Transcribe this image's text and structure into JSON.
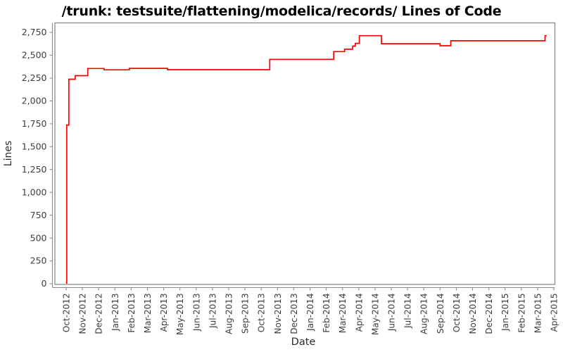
{
  "chart_data": {
    "type": "line",
    "style": "step",
    "title": "/trunk: testsuite/flattening/modelica/records/ Lines of Code",
    "xlabel": "Date",
    "ylabel": "Lines",
    "line_color": "#ff0000",
    "frame_color": "#8c8c8c",
    "tick_label_color": "#3d3d3d",
    "axis_label_color": "#2b2b2b",
    "grid": "off",
    "legend": "none",
    "ylim": [
      0,
      2750
    ],
    "y_ticks": [
      {
        "label": "0",
        "value": 0
      },
      {
        "label": "250",
        "value": 250
      },
      {
        "label": "500",
        "value": 500
      },
      {
        "label": "750",
        "value": 750
      },
      {
        "label": "1,000",
        "value": 1000
      },
      {
        "label": "1,250",
        "value": 1250
      },
      {
        "label": "1,500",
        "value": 1500
      },
      {
        "label": "1,750",
        "value": 1750
      },
      {
        "label": "2,000",
        "value": 2000
      },
      {
        "label": "2,250",
        "value": 2250
      },
      {
        "label": "2,500",
        "value": 2500
      },
      {
        "label": "2,750",
        "value": 2750
      }
    ],
    "x_tick_labels": [
      "Oct-2012",
      "Nov-2012",
      "Dec-2012",
      "Jan-2013",
      "Feb-2013",
      "Mar-2013",
      "Apr-2013",
      "May-2013",
      "Jun-2013",
      "Jul-2013",
      "Aug-2013",
      "Sep-2013",
      "Oct-2013",
      "Nov-2013",
      "Dec-2013",
      "Jan-2014",
      "Feb-2014",
      "Mar-2014",
      "Apr-2014",
      "May-2014",
      "Jun-2014",
      "Jul-2014",
      "Aug-2014",
      "Sep-2014",
      "Oct-2014",
      "Nov-2014",
      "Dec-2014",
      "Jan-2015",
      "Feb-2015",
      "Mar-2015",
      "Apr-2015"
    ],
    "series": [
      {
        "name": "Lines of Code",
        "start": {
          "date": "2012-10-02",
          "value": 0
        },
        "change_points": [
          {
            "date": "2012-10-02",
            "value": 1736
          },
          {
            "date": "2012-10-06",
            "value": 2238
          },
          {
            "date": "2012-10-18",
            "value": 2276
          },
          {
            "date": "2012-11-11",
            "value": 2355
          },
          {
            "date": "2012-12-11",
            "value": 2340
          },
          {
            "date": "2013-01-28",
            "value": 2356
          },
          {
            "date": "2013-04-08",
            "value": 2342
          },
          {
            "date": "2013-10-17",
            "value": 2455
          },
          {
            "date": "2014-02-15",
            "value": 2540
          },
          {
            "date": "2014-03-05",
            "value": 2566
          },
          {
            "date": "2014-03-20",
            "value": 2600
          },
          {
            "date": "2014-03-25",
            "value": 2630
          },
          {
            "date": "2014-04-02",
            "value": 2714
          },
          {
            "date": "2014-05-13",
            "value": 2626
          },
          {
            "date": "2014-09-01",
            "value": 2604
          },
          {
            "date": "2014-09-21",
            "value": 2658
          },
          {
            "date": "2015-03-15",
            "value": 2714
          }
        ],
        "end_date": "2015-03-18"
      }
    ]
  }
}
